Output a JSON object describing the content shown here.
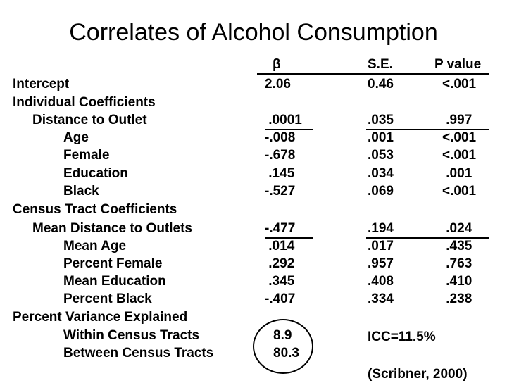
{
  "title": "Correlates of Alcohol Consumption",
  "columns": {
    "beta": "β",
    "se": "S.E.",
    "p": "P value"
  },
  "rows": [
    {
      "label": "Intercept",
      "beta": "2.06",
      "se": "0.46",
      "p": "<.001"
    },
    {
      "label": "Individual Coefficients",
      "beta": "",
      "se": "",
      "p": ""
    },
    {
      "label": "Distance to Outlet",
      "beta": " .0001",
      "se": ".035",
      "p": " .997"
    },
    {
      "label": "Age",
      "beta": "-.008",
      "se": ".001",
      "p": "<.001"
    },
    {
      "label": "Female",
      "beta": "-.678",
      "se": ".053",
      "p": "<.001"
    },
    {
      "label": "Education",
      "beta": " .145",
      "se": ".034",
      "p": " .001"
    },
    {
      "label": "Black",
      "beta": "-.527",
      "se": ".069",
      "p": "<.001"
    },
    {
      "label": "Census Tract Coefficients",
      "beta": "",
      "se": "",
      "p": ""
    },
    {
      "label": "Mean Distance to Outlets",
      "beta": "-.477",
      "se": ".194",
      "p": " .024"
    },
    {
      "label": "Mean Age",
      "beta": " .014",
      "se": ".017",
      "p": " .435"
    },
    {
      "label": "Percent Female",
      "beta": " .292",
      "se": ".957",
      "p": " .763"
    },
    {
      "label": "Mean Education",
      "beta": " .345",
      "se": ".408",
      "p": " .410"
    },
    {
      "label": "Percent Black",
      "beta": "-.407",
      "se": ".334",
      "p": " .238"
    },
    {
      "label": "Percent Variance Explained",
      "beta": "",
      "se": "",
      "p": ""
    },
    {
      "label": "Within Census Tracts",
      "beta": "8.9",
      "se": "",
      "p": ""
    },
    {
      "label": "Between Census Tracts",
      "beta": "80.3",
      "se": "",
      "p": ""
    }
  ],
  "icc": "ICC=11.5%",
  "citation": "(Scribner, 2000)"
}
